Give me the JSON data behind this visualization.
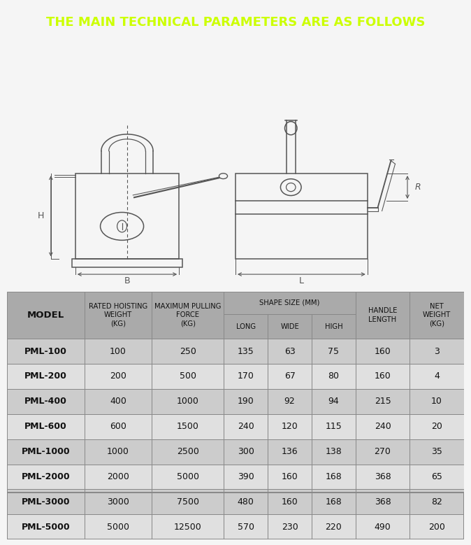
{
  "title": "THE MAIN TECHNICAL PARAMETERS ARE AS FOLLOWS",
  "title_bg": "#1c2b3a",
  "title_color": "#ccff00",
  "bg_color": "#f5f5f5",
  "table_header_bg": "#aaaaaa",
  "table_row_bg_odd": "#cccccc",
  "table_row_bg_even": "#e0e0e0",
  "table_border": "#888888",
  "rows": [
    [
      "PML-100",
      "100",
      "250",
      "135",
      "63",
      "75",
      "160",
      "3"
    ],
    [
      "PML-200",
      "200",
      "500",
      "170",
      "67",
      "80",
      "160",
      "4"
    ],
    [
      "PML-400",
      "400",
      "1000",
      "190",
      "92",
      "94",
      "215",
      "10"
    ],
    [
      "PML-600",
      "600",
      "1500",
      "240",
      "120",
      "115",
      "240",
      "20"
    ],
    [
      "PML-1000",
      "1000",
      "2500",
      "300",
      "136",
      "138",
      "270",
      "35"
    ],
    [
      "PML-2000",
      "2000",
      "5000",
      "390",
      "160",
      "168",
      "368",
      "65"
    ],
    [
      "PML-3000",
      "3000",
      "7500",
      "480",
      "160",
      "168",
      "368",
      "82"
    ],
    [
      "PML-5000",
      "5000",
      "12500",
      "570",
      "230",
      "220",
      "490",
      "200"
    ]
  ],
  "col_widths": [
    1.5,
    1.3,
    1.4,
    0.85,
    0.85,
    0.85,
    1.05,
    1.05
  ]
}
